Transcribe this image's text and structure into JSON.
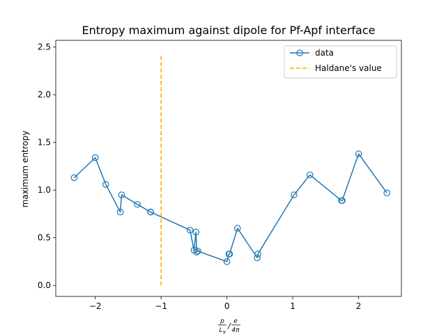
{
  "chart_data": {
    "type": "line",
    "title": "Entropy maximum against dipole for Pf-Apf interface",
    "xlabel": {
      "num1": "p",
      "den1": "L",
      "den1_sub": "y",
      "slash": "/",
      "num2": "e",
      "den2": "4π"
    },
    "ylabel": "maximum entropy",
    "xlim": [
      -2.6,
      2.65
    ],
    "ylim": [
      -0.115,
      2.57
    ],
    "xticks": [
      -2,
      -1,
      0,
      1,
      2
    ],
    "xtick_labels": [
      "−2",
      "−1",
      "0",
      "1",
      "2"
    ],
    "yticks": [
      0.0,
      0.5,
      1.0,
      1.5,
      2.0,
      2.5
    ],
    "ytick_labels": [
      "0.0",
      "0.5",
      "1.0",
      "1.5",
      "2.0",
      "2.5"
    ],
    "grid": false,
    "legend_position": "top-right",
    "series": [
      {
        "name": "data",
        "style": "line-with-open-circles",
        "color": "#1f77b4",
        "x": [
          -2.32,
          -2.0,
          -1.84,
          -1.62,
          -1.6,
          -1.36,
          -1.16,
          -1.16,
          -0.56,
          -0.5,
          -0.47,
          -0.46,
          -0.44,
          0.0,
          0.03,
          0.04,
          0.16,
          0.46,
          0.47,
          1.02,
          1.26,
          1.74,
          1.75,
          2.0,
          2.43
        ],
        "y": [
          1.13,
          1.34,
          1.06,
          0.77,
          0.95,
          0.85,
          0.77,
          0.77,
          0.58,
          0.37,
          0.56,
          0.35,
          0.36,
          0.25,
          0.33,
          0.33,
          0.6,
          0.29,
          0.33,
          0.95,
          1.16,
          0.89,
          0.89,
          1.38,
          0.97
        ]
      },
      {
        "name": "Haldane's value",
        "style": "dashed-vertical",
        "color": "#ffa500",
        "x": [
          -1.0,
          -1.0
        ],
        "y": [
          0.0,
          2.43
        ]
      }
    ]
  }
}
